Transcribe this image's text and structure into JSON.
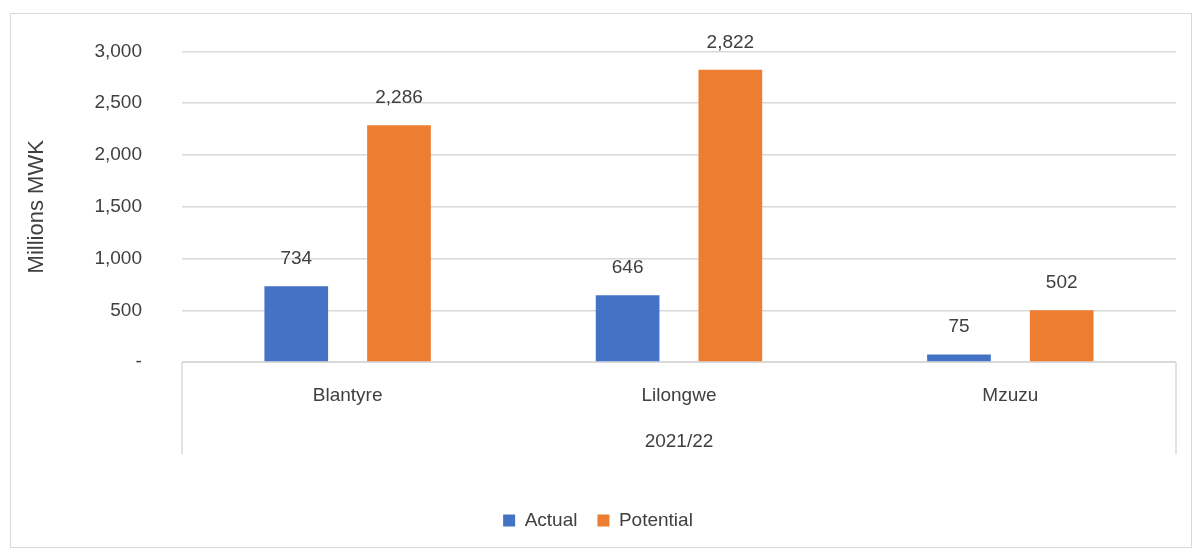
{
  "chart_data": {
    "type": "bar",
    "categories": [
      "Blantyre",
      "Lilongwe",
      "Mzuzu"
    ],
    "xlabel": "2021/22",
    "ylabel": "Millions MWK",
    "series": [
      {
        "name": "Actual",
        "color": "#4472c4",
        "values": [
          734,
          646,
          75
        ],
        "value_labels": [
          "734",
          "646",
          "75"
        ]
      },
      {
        "name": "Potential",
        "color": "#ed7d31",
        "values": [
          2286,
          2822,
          502
        ],
        "value_labels": [
          "2,286",
          "2,822",
          "502"
        ]
      }
    ],
    "ylim": [
      0,
      3000
    ],
    "yticks": [
      {
        "value": 0,
        "label": "-"
      },
      500,
      {
        "value": 1000,
        "label": "1,000"
      },
      {
        "value": 1500,
        "label": "1,500"
      },
      {
        "value": 2000,
        "label": "2,000"
      },
      {
        "value": 2500,
        "label": "2,500"
      },
      {
        "value": 3000,
        "label": "3,000"
      }
    ],
    "grid": "y",
    "legend": "bottom"
  }
}
